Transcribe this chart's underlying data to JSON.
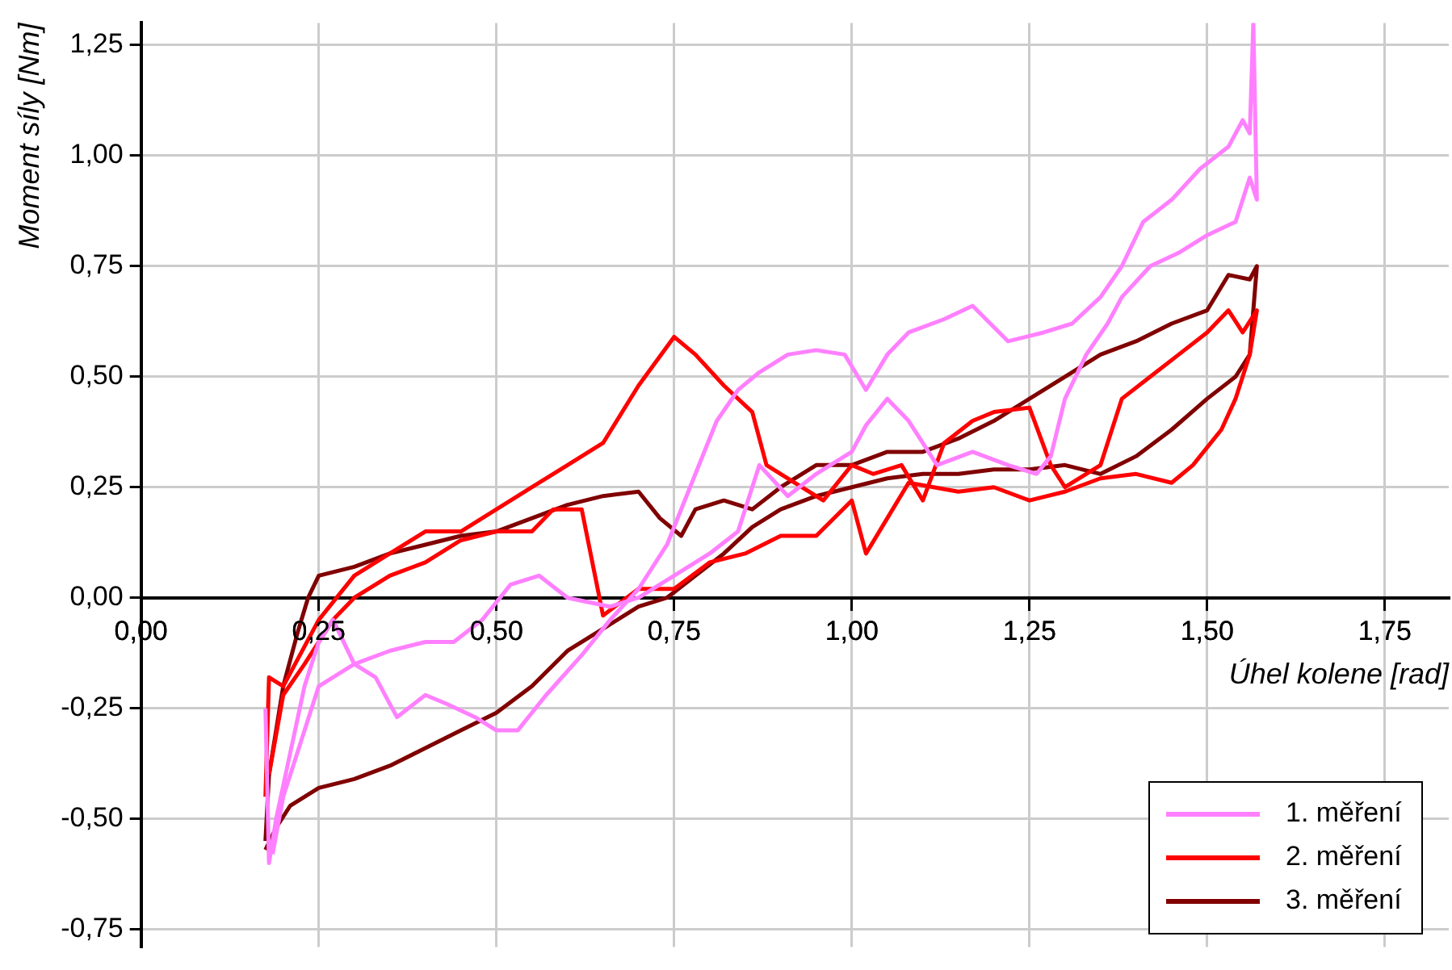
{
  "chart_data": {
    "type": "line",
    "xlabel": "Úhel kolene [rad]",
    "ylabel": "Moment síly [Nm]",
    "xlim": [
      0,
      1.84
    ],
    "ylim": [
      -0.79,
      1.3
    ],
    "xticks": [
      {
        "value": 0,
        "label": "0,00"
      },
      {
        "value": 0.25,
        "label": "0,25"
      },
      {
        "value": 0.5,
        "label": "0,50"
      },
      {
        "value": 0.75,
        "label": "0,75"
      },
      {
        "value": 1,
        "label": "1,00"
      },
      {
        "value": 1.25,
        "label": "1,25"
      },
      {
        "value": 1.5,
        "label": "1,50"
      },
      {
        "value": 1.75,
        "label": "1,75"
      }
    ],
    "yticks": [
      {
        "value": -0.75,
        "label": "-0,75"
      },
      {
        "value": -0.5,
        "label": "-0,50"
      },
      {
        "value": -0.25,
        "label": "-0,25"
      },
      {
        "value": 0,
        "label": "0,00"
      },
      {
        "value": 0.25,
        "label": "0,25"
      },
      {
        "value": 0.5,
        "label": "0,50"
      },
      {
        "value": 0.75,
        "label": "0,75"
      },
      {
        "value": 1,
        "label": "1,00"
      },
      {
        "value": 1.25,
        "label": "1,25"
      }
    ],
    "grid": true,
    "legend": "bottom right",
    "marker": "none",
    "line_style": "solid",
    "series": [
      {
        "name": "1. měření",
        "color": "#ff80ff",
        "x": [
          0.175,
          0.18,
          0.19,
          0.21,
          0.23,
          0.25,
          0.27,
          0.3,
          0.33,
          0.36,
          0.4,
          0.43,
          0.47,
          0.5,
          0.53,
          0.57,
          0.62,
          0.66,
          0.7,
          0.74,
          0.78,
          0.81,
          0.84,
          0.87,
          0.91,
          0.95,
          0.99,
          1.02,
          1.05,
          1.08,
          1.13,
          1.17,
          1.22,
          1.27,
          1.31,
          1.35,
          1.38,
          1.41,
          1.45,
          1.49,
          1.53,
          1.55,
          1.56,
          1.565,
          1.57,
          1.56,
          1.54,
          1.5,
          1.46,
          1.42,
          1.38,
          1.36,
          1.33,
          1.3,
          1.28,
          1.26,
          1.22,
          1.17,
          1.12,
          1.08,
          1.05,
          1.02,
          1,
          0.95,
          0.91,
          0.87,
          0.84,
          0.8,
          0.75,
          0.7,
          0.66,
          0.6,
          0.56,
          0.52,
          0.48,
          0.44,
          0.4,
          0.35,
          0.3,
          0.25,
          0.22,
          0.2,
          0.185
        ],
        "values": [
          -0.25,
          -0.6,
          -0.5,
          -0.35,
          -0.2,
          -0.1,
          -0.05,
          -0.15,
          -0.18,
          -0.27,
          -0.22,
          -0.24,
          -0.27,
          -0.3,
          -0.3,
          -0.22,
          -0.13,
          -0.05,
          0.02,
          0.12,
          0.28,
          0.4,
          0.47,
          0.51,
          0.55,
          0.56,
          0.55,
          0.47,
          0.55,
          0.6,
          0.63,
          0.66,
          0.58,
          0.6,
          0.62,
          0.68,
          0.75,
          0.85,
          0.9,
          0.97,
          1.02,
          1.08,
          1.05,
          1.3,
          0.9,
          0.95,
          0.85,
          0.82,
          0.78,
          0.75,
          0.68,
          0.62,
          0.55,
          0.45,
          0.32,
          0.28,
          0.3,
          0.33,
          0.3,
          0.4,
          0.45,
          0.39,
          0.33,
          0.28,
          0.23,
          0.3,
          0.15,
          0.1,
          0.05,
          0,
          -0.02,
          0,
          0.05,
          0.03,
          -0.05,
          -0.1,
          -0.1,
          -0.12,
          -0.15,
          -0.2,
          -0.35,
          -0.45,
          -0.58
        ]
      },
      {
        "name": "2. měření",
        "color": "#ff0000",
        "x": [
          0.175,
          0.18,
          0.2,
          0.25,
          0.3,
          0.35,
          0.4,
          0.45,
          0.5,
          0.55,
          0.6,
          0.65,
          0.7,
          0.75,
          0.78,
          0.82,
          0.86,
          0.88,
          0.92,
          0.96,
          1,
          1.03,
          1.07,
          1.1,
          1.13,
          1.17,
          1.2,
          1.25,
          1.28,
          1.3,
          1.35,
          1.38,
          1.42,
          1.46,
          1.5,
          1.53,
          1.55,
          1.57,
          1.56,
          1.54,
          1.52,
          1.48,
          1.45,
          1.4,
          1.35,
          1.3,
          1.25,
          1.2,
          1.15,
          1.08,
          1.05,
          1.02,
          1,
          0.95,
          0.9,
          0.85,
          0.8,
          0.75,
          0.7,
          0.65,
          0.62,
          0.58,
          0.55,
          0.5,
          0.45,
          0.4,
          0.35,
          0.3,
          0.27,
          0.23,
          0.2,
          0.18
        ],
        "values": [
          -0.45,
          -0.18,
          -0.2,
          -0.05,
          0.05,
          0.1,
          0.15,
          0.15,
          0.2,
          0.25,
          0.3,
          0.35,
          0.48,
          0.59,
          0.55,
          0.48,
          0.42,
          0.3,
          0.26,
          0.22,
          0.3,
          0.28,
          0.3,
          0.22,
          0.35,
          0.4,
          0.42,
          0.43,
          0.3,
          0.25,
          0.3,
          0.45,
          0.5,
          0.55,
          0.6,
          0.65,
          0.6,
          0.65,
          0.55,
          0.45,
          0.38,
          0.3,
          0.26,
          0.28,
          0.27,
          0.24,
          0.22,
          0.25,
          0.24,
          0.26,
          0.18,
          0.1,
          0.22,
          0.14,
          0.14,
          0.1,
          0.08,
          0.02,
          0.02,
          -0.04,
          0.2,
          0.2,
          0.15,
          0.15,
          0.13,
          0.08,
          0.05,
          0,
          -0.05,
          -0.15,
          -0.22,
          -0.4
        ]
      },
      {
        "name": "3. měření",
        "color": "#800000",
        "x": [
          0.175,
          0.19,
          0.21,
          0.25,
          0.3,
          0.35,
          0.4,
          0.45,
          0.5,
          0.55,
          0.6,
          0.65,
          0.7,
          0.74,
          0.78,
          0.82,
          0.86,
          0.9,
          0.95,
          1,
          1.05,
          1.1,
          1.15,
          1.2,
          1.25,
          1.3,
          1.35,
          1.4,
          1.45,
          1.5,
          1.54,
          1.56,
          1.57,
          1.56,
          1.53,
          1.5,
          1.45,
          1.4,
          1.35,
          1.3,
          1.25,
          1.2,
          1.15,
          1.1,
          1.05,
          1,
          0.95,
          0.9,
          0.86,
          0.82,
          0.78,
          0.76,
          0.73,
          0.7,
          0.65,
          0.6,
          0.55,
          0.5,
          0.45,
          0.4,
          0.35,
          0.3,
          0.25,
          0.235,
          0.22,
          0.2,
          0.18,
          0.175
        ],
        "values": [
          -0.57,
          -0.52,
          -0.47,
          -0.43,
          -0.41,
          -0.38,
          -0.34,
          -0.3,
          -0.26,
          -0.2,
          -0.12,
          -0.07,
          -0.02,
          0,
          0.05,
          0.1,
          0.16,
          0.2,
          0.23,
          0.25,
          0.27,
          0.28,
          0.28,
          0.29,
          0.29,
          0.3,
          0.28,
          0.32,
          0.38,
          0.45,
          0.5,
          0.55,
          0.75,
          0.72,
          0.73,
          0.65,
          0.62,
          0.58,
          0.55,
          0.5,
          0.45,
          0.4,
          0.36,
          0.33,
          0.33,
          0.3,
          0.3,
          0.25,
          0.2,
          0.22,
          0.2,
          0.14,
          0.18,
          0.24,
          0.23,
          0.21,
          0.18,
          0.15,
          0.14,
          0.12,
          0.1,
          0.07,
          0.05,
          0,
          -0.08,
          -0.2,
          -0.4,
          -0.55
        ]
      }
    ]
  }
}
